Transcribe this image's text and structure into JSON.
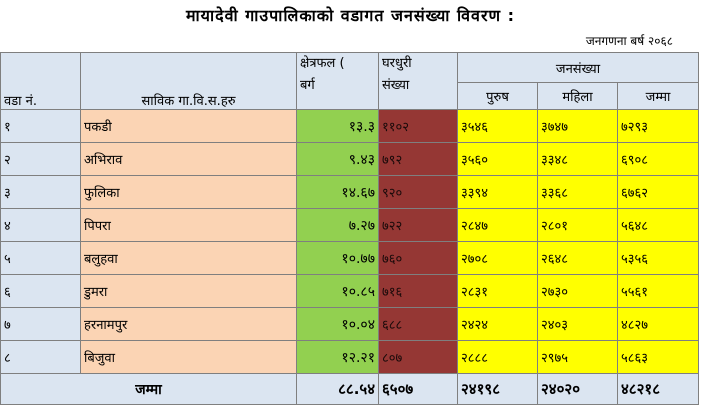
{
  "title": "मायादेवी गाउपालिकाको वडागत जनसंख्या विवरण :",
  "subtitle": "जनगणना बर्ष २०६८",
  "headers": {
    "ward": "वडा नं.",
    "vdc": "साविक गा.वि.स.हरु",
    "area_line1": "क्षेत्रफल (",
    "area_line2": "बर्ग",
    "house_line1": "घरधुरी",
    "house_line2": "संख्या",
    "population": "जनसंख्या",
    "male": "पुरुष",
    "female": "महिला",
    "total": "जम्मा"
  },
  "rows": [
    {
      "ward": "१",
      "vdc": "पकडी",
      "area": "१३.३",
      "households": "११०२",
      "male": "३५४६",
      "female": "३७४७",
      "total": "७२९३"
    },
    {
      "ward": "२",
      "vdc": "अभिराव",
      "area": "९.४३",
      "households": "७९२",
      "male": "३५६०",
      "female": "३३४८",
      "total": "६९०८"
    },
    {
      "ward": "३",
      "vdc": "फुलिका",
      "area": "१४.६७",
      "households": "९२०",
      "male": "३३९४",
      "female": "३३६८",
      "total": "६७६२"
    },
    {
      "ward": "४",
      "vdc": "पिपरा",
      "area": "७.२७",
      "households": "७२२",
      "male": "२८४७",
      "female": "२८०१",
      "total": "५६४८"
    },
    {
      "ward": "५",
      "vdc": "बलुहवा",
      "area": "१०.७७",
      "households": "७६०",
      "male": "२७०८",
      "female": "२६४८",
      "total": "५३५६"
    },
    {
      "ward": "६",
      "vdc": "डुमरा",
      "area": "१०.८५",
      "households": "७१६",
      "male": "२८३१",
      "female": "२७३०",
      "total": "५५६१"
    },
    {
      "ward": "७",
      "vdc": "हरनामपुर",
      "area": "१०.०४",
      "households": "६८८",
      "male": "२४२४",
      "female": "२४०३",
      "total": "४८२७"
    },
    {
      "ward": "८",
      "vdc": "बिजुवा",
      "area": "१२.२१",
      "households": "८०७",
      "male": "२८८८",
      "female": "२९७५",
      "total": "५८६३"
    }
  ],
  "totals": {
    "label": "जम्मा",
    "area": "८८.५४",
    "households": "६५०७",
    "male": "२४१९८",
    "female": "२४०२०",
    "total": "४८२१८"
  }
}
